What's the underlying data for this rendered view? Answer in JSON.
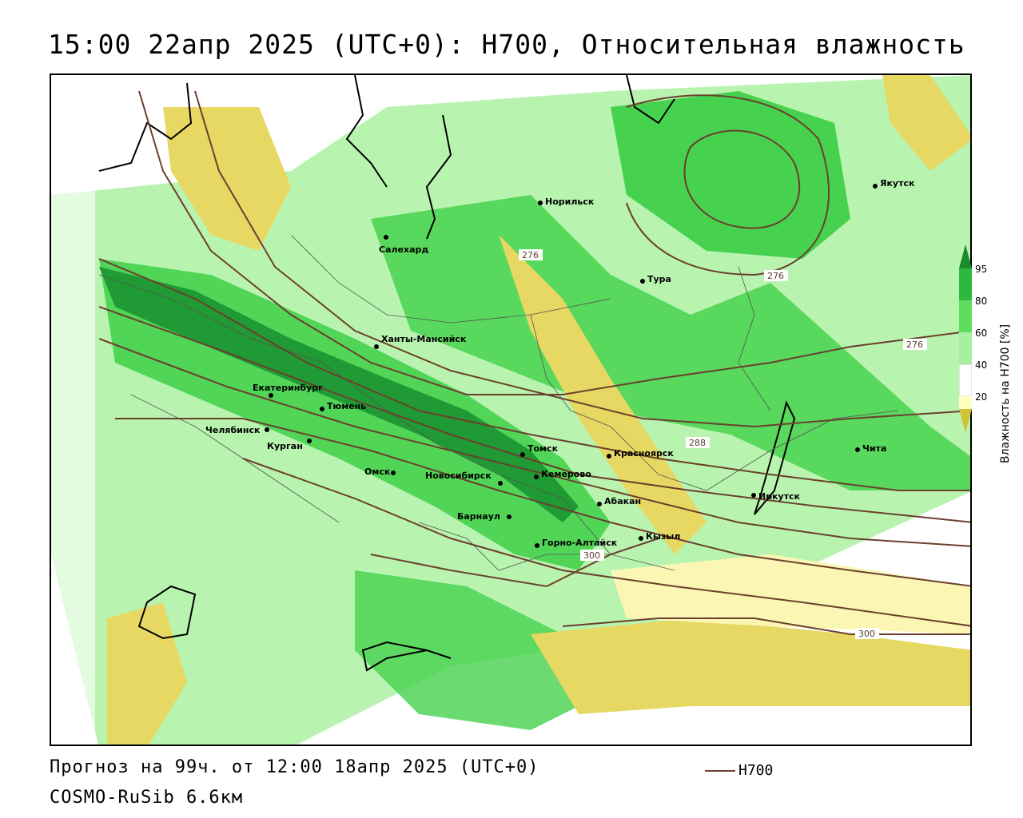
{
  "title": "15:00 22апр 2025 (UTC+0): H700, Относительная влажность",
  "footer": {
    "forecast": "Прогноз на 99ч. от 12:00 18апр 2025 (UTC+0)",
    "model": "COSMO-RuSib 6.6км",
    "contour_legend": "H700"
  },
  "colorbar": {
    "title": "Влажность на H700 [%]",
    "ticks": [
      "95",
      "80",
      "60",
      "40",
      "20"
    ],
    "colors": [
      "#1a8a2a",
      "#2eb83e",
      "#5edc5e",
      "#a6f0a0",
      "#ffffff",
      "#ffffc0",
      "#f0e68c",
      "#d2c23a"
    ]
  },
  "colors": {
    "contour": "#6b3f2e",
    "dark_green": "#1f9a34",
    "green": "#46d24e",
    "light_green": "#b8f4b0",
    "white": "#ffffff",
    "light_yellow": "#fbf6b4",
    "yellow": "#e6d863"
  },
  "cities": [
    {
      "name": "Норильск"
    },
    {
      "name": "Якутск"
    },
    {
      "name": "Салехард"
    },
    {
      "name": "Тура"
    },
    {
      "name": "Ханты-Мансийск"
    },
    {
      "name": "Екатеринбург"
    },
    {
      "name": "Тюмень"
    },
    {
      "name": "Челябинск"
    },
    {
      "name": "Курган"
    },
    {
      "name": "Омск"
    },
    {
      "name": "Новосибирск"
    },
    {
      "name": "Томск"
    },
    {
      "name": "Кемерово"
    },
    {
      "name": "Красноярск"
    },
    {
      "name": "Абакан"
    },
    {
      "name": "Барнаул"
    },
    {
      "name": "Горно-Алтайск"
    },
    {
      "name": "Кызыл"
    },
    {
      "name": "Иркутск"
    },
    {
      "name": "Чита"
    }
  ],
  "contour_labels": [
    "276",
    "276",
    "276",
    "288",
    "300",
    "300"
  ]
}
